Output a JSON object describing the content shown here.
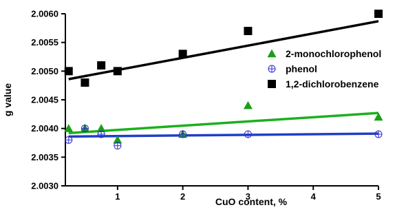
{
  "chart_data": {
    "type": "scatter",
    "title": "",
    "xlabel": "CuO content, %",
    "ylabel": "g value",
    "xlim": [
      0.2,
      5
    ],
    "ylim": [
      2.003,
      2.006
    ],
    "x_ticks": [
      1,
      2,
      3,
      4,
      5
    ],
    "x_tick_labels": [
      "1",
      "2",
      "3",
      "4",
      "5"
    ],
    "y_ticks": [
      2.003,
      2.0035,
      2.004,
      2.0045,
      2.005,
      2.0055,
      2.006
    ],
    "y_tick_labels": [
      "2.0030",
      "2.0035",
      "2.0040",
      "2.0045",
      "2.0050",
      "2.0055",
      "2.0060"
    ],
    "grid": false,
    "legend_position": "right",
    "series": [
      {
        "name": "2-monochlorophenol",
        "marker": "triangle",
        "color": "#18a018",
        "x": [
          0.25,
          0.5,
          0.75,
          1,
          2,
          3,
          5
        ],
        "y": [
          2.004,
          2.004,
          2.004,
          2.0038,
          2.0039,
          2.0044,
          2.0042
        ],
        "fit": {
          "x": [
            0.25,
            5
          ],
          "y": [
            2.00392,
            2.00427
          ],
          "color": "#1cb01c"
        }
      },
      {
        "name": "phenol",
        "marker": "circle-plus",
        "color": "#2a2acc",
        "x": [
          0.25,
          0.5,
          0.75,
          1,
          2,
          3,
          5
        ],
        "y": [
          2.0038,
          2.004,
          2.0039,
          2.0037,
          2.0039,
          2.0039,
          2.0039
        ],
        "fit": {
          "x": [
            0.25,
            5
          ],
          "y": [
            2.00386,
            2.00391
          ],
          "color": "#1f3ec8"
        }
      },
      {
        "name": "1,2-dichlorobenzene",
        "marker": "square",
        "color": "#000000",
        "x": [
          0.25,
          0.5,
          0.75,
          1,
          2,
          3,
          5
        ],
        "y": [
          2.005,
          2.0048,
          2.0051,
          2.005,
          2.0053,
          2.0057,
          2.006
        ],
        "fit": {
          "x": [
            0.25,
            5
          ],
          "y": [
            2.00486,
            2.00587
          ],
          "color": "#000000"
        }
      }
    ]
  }
}
